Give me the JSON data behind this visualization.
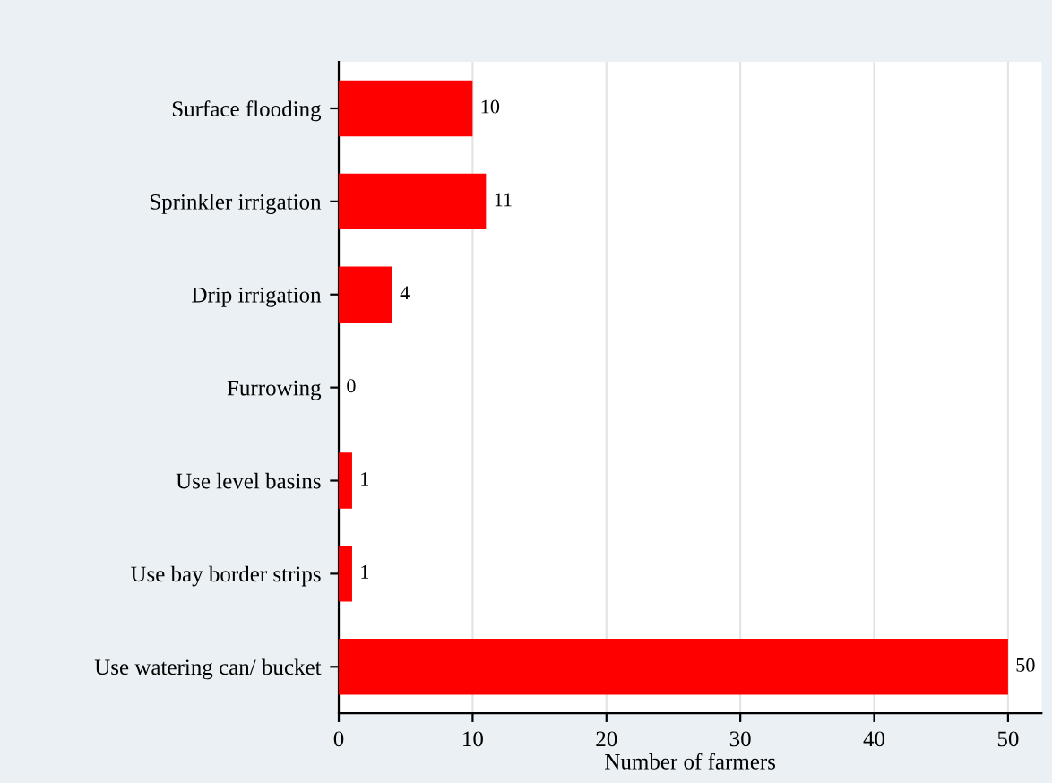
{
  "chart_data": {
    "type": "bar",
    "orientation": "horizontal",
    "categories": [
      "Surface flooding",
      "Sprinkler irrigation",
      "Drip irrigation",
      "Furrowing",
      "Use level basins",
      "Use bay border strips",
      "Use watering can/ bucket"
    ],
    "values": [
      10,
      11,
      4,
      0,
      1,
      1,
      50
    ],
    "color": "#ff0000",
    "xlabel": "Number of farmers",
    "xlim": [
      0,
      52.5
    ],
    "xticks": [
      0,
      10,
      20,
      30,
      40,
      50
    ],
    "grid": "x",
    "data_labels": true
  }
}
